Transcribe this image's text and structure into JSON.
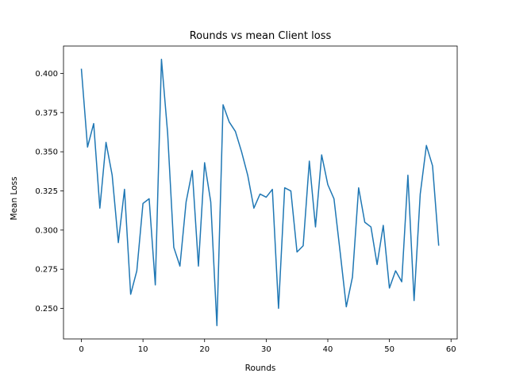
{
  "chart_data": {
    "type": "line",
    "title": "Rounds vs mean Client loss",
    "xlabel": "Rounds",
    "ylabel": "Mean Loss",
    "xlim": [
      -2.9,
      61
    ],
    "ylim": [
      0.2305,
      0.4175
    ],
    "xticks": [
      0,
      10,
      20,
      30,
      40,
      50,
      60
    ],
    "yticks": [
      0.25,
      0.275,
      0.3,
      0.325,
      0.35,
      0.375,
      0.4
    ],
    "grid": false,
    "legend": "none",
    "color": "#1f77b4",
    "series": [
      {
        "x": [
          0,
          1,
          2,
          3,
          4,
          5,
          6,
          7,
          8,
          9,
          10,
          11,
          12,
          13,
          14,
          15,
          16,
          17,
          18,
          19,
          20,
          21,
          22,
          23,
          24,
          25,
          26,
          27,
          28,
          29,
          30,
          31,
          32,
          33,
          34,
          35,
          36,
          37,
          38,
          39,
          40,
          41,
          42,
          43,
          44,
          45,
          46,
          47,
          48,
          49,
          50,
          51,
          52,
          53,
          54,
          55,
          56,
          57,
          58
        ],
        "values": [
          0.403,
          0.353,
          0.368,
          0.314,
          0.356,
          0.335,
          0.292,
          0.326,
          0.259,
          0.274,
          0.317,
          0.32,
          0.265,
          0.409,
          0.362,
          0.289,
          0.277,
          0.318,
          0.338,
          0.277,
          0.343,
          0.318,
          0.239,
          0.38,
          0.369,
          0.363,
          0.35,
          0.335,
          0.314,
          0.323,
          0.321,
          0.326,
          0.25,
          0.327,
          0.325,
          0.286,
          0.29,
          0.344,
          0.302,
          0.348,
          0.329,
          0.32,
          0.286,
          0.251,
          0.27,
          0.327,
          0.305,
          0.302,
          0.278,
          0.303,
          0.263,
          0.274,
          0.267,
          0.335,
          0.255,
          0.323,
          0.354,
          0.341,
          0.29
        ]
      }
    ]
  }
}
